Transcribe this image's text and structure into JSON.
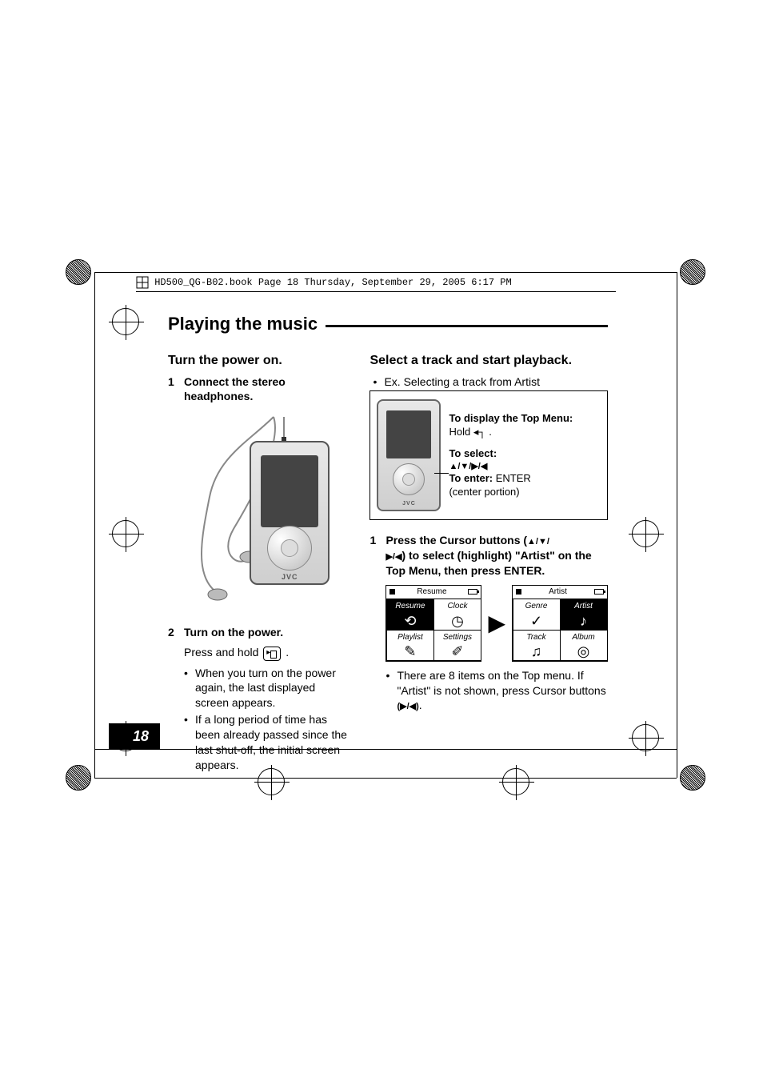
{
  "header_strip": "HD500_QG-B02.book  Page 18  Thursday, September 29, 2005  6:17 PM",
  "section_title": "Playing the music",
  "page_number": "18",
  "left": {
    "sub1": "Turn the power on.",
    "step1_num": "1",
    "step1_text": "Connect the stereo headphones.",
    "step2_num": "2",
    "step2_text": "Turn on the power.",
    "press_hold_prefix": "Press and hold ",
    "press_hold_suffix": ".",
    "bullet1": "When you turn on the power again, the last displayed screen appears.",
    "bullet2": "If a long period of time has been already passed since the last shut-off, the initial screen appears.",
    "jvc": "JVC"
  },
  "right": {
    "sub1": "Select a track and start playback.",
    "ex_line": "Ex. Selecting a track from Artist",
    "callout": {
      "topmenu_label": "To display the Top Menu:",
      "hold_prefix": "Hold ",
      "hold_icon": "◂┐",
      "hold_suffix": ".",
      "select_label": "To select:",
      "select_icons": "▲/▼/▶/◀",
      "enter_label": "To enter:",
      "enter_value": " ENTER",
      "enter_sub": "(center portion)"
    },
    "jvc": "JVC",
    "step1_num": "1",
    "step1_text_a": "Press the Cursor buttons (",
    "step1_icons1": "▲/▼/",
    "step1_icons2": "▶/◀",
    "step1_text_b": ") to select (highlight) \"Artist\" on the Top Menu, then press ENTER.",
    "screen1": {
      "title": "Resume",
      "cells": [
        {
          "label": "Resume",
          "icon": "⟲",
          "inv": true
        },
        {
          "label": "Clock",
          "icon": "◷",
          "inv": false
        },
        {
          "label": "Playlist",
          "icon": "✎",
          "inv": false
        },
        {
          "label": "Settings",
          "icon": "✐",
          "inv": false
        }
      ]
    },
    "screen2": {
      "title": "Artist",
      "cells": [
        {
          "label": "Genre",
          "icon": "✓",
          "inv": false
        },
        {
          "label": "Artist",
          "icon": "♪",
          "inv": true
        },
        {
          "label": "Track",
          "icon": "♫",
          "inv": false
        },
        {
          "label": "Album",
          "icon": "◎",
          "inv": false
        }
      ]
    },
    "note_a": "There are 8 items on the Top menu. If \"Artist\" is not shown, press Cursor buttons ",
    "note_icons": "(▶/◀)",
    "note_b": "."
  },
  "colors": {
    "text": "#000000",
    "bg": "#ffffff",
    "device_body_top": "#e8e8e8",
    "device_body_bottom": "#cfcfcf",
    "screen_dark": "#444444"
  }
}
